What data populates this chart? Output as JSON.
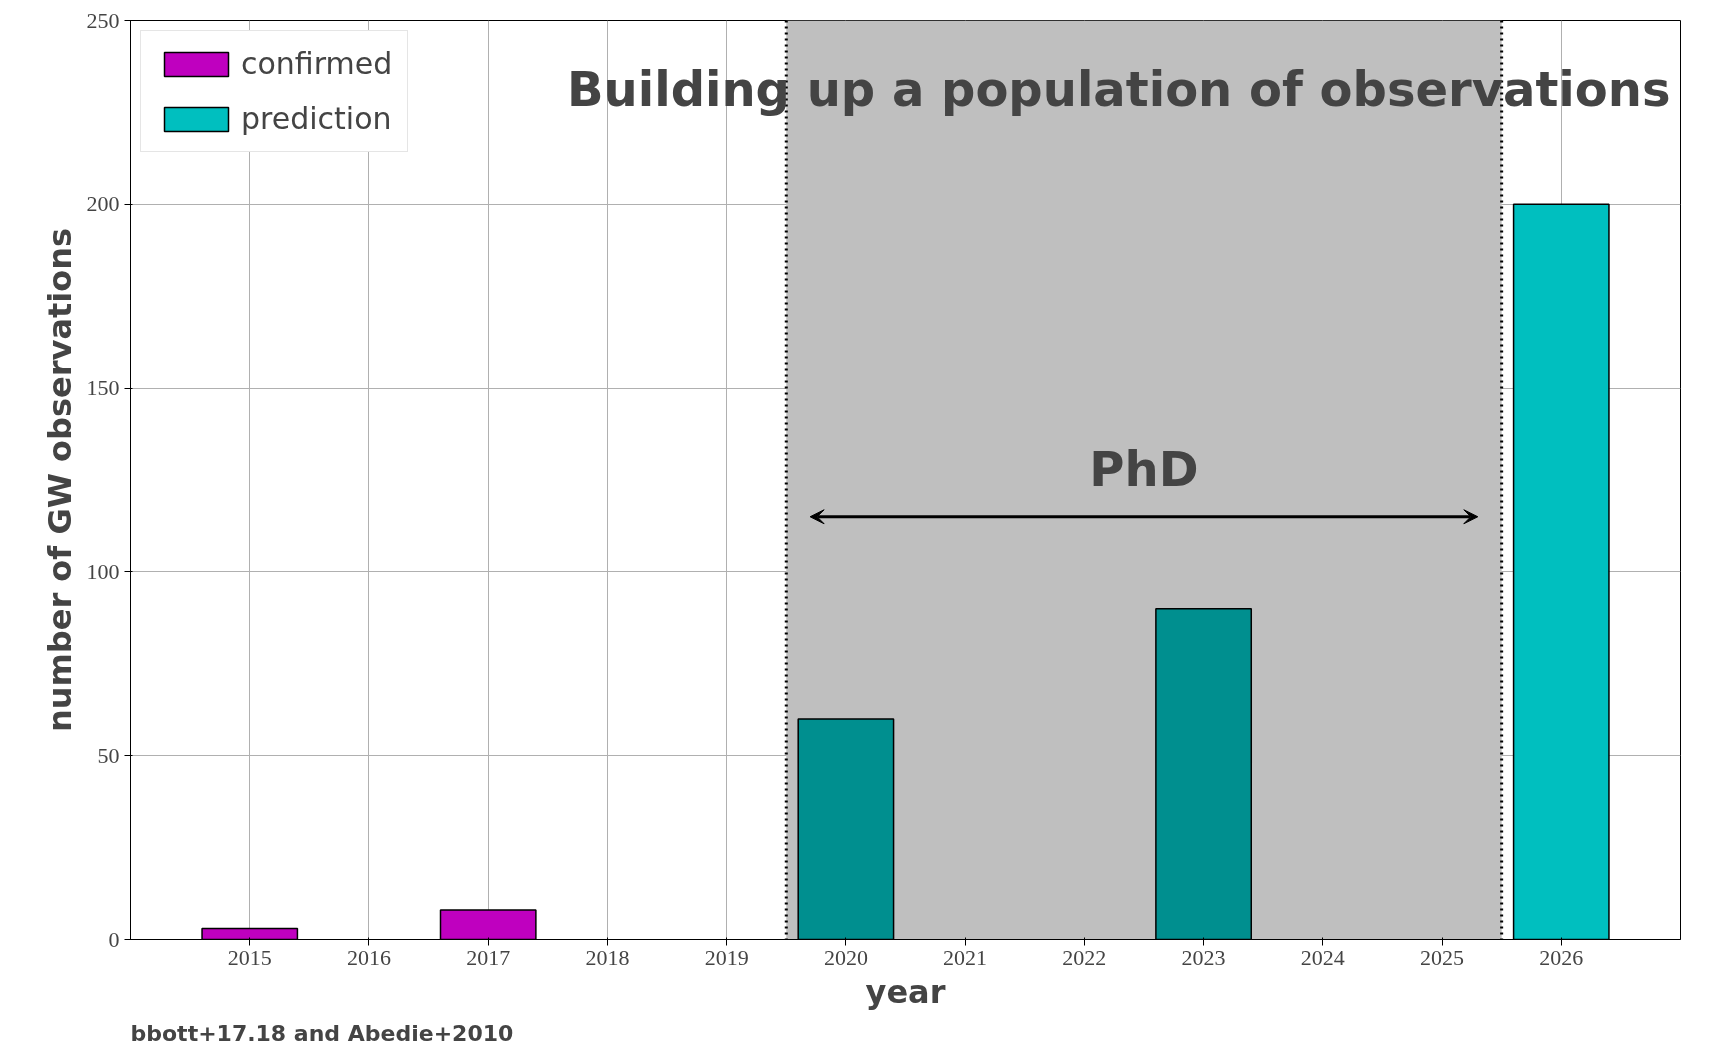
{
  "chart_data": {
    "type": "bar",
    "title": "Building up a population of observations",
    "xlabel": "year",
    "ylabel": "number of GW observations",
    "series": [
      {
        "name": "confirmed",
        "color": "#bf00bf",
        "x": [
          2015,
          2017
        ],
        "values": [
          3,
          8
        ]
      },
      {
        "name": "prediction",
        "color": "#00bfbf",
        "colors": [
          "#008f8f",
          "#008f8f",
          "#00bfbf"
        ],
        "x": [
          2020,
          2023,
          2026
        ],
        "values": [
          60,
          90,
          200
        ]
      }
    ],
    "xlim": [
      2014,
      2027
    ],
    "xticks": [
      2015,
      2016,
      2017,
      2018,
      2019,
      2020,
      2021,
      2022,
      2023,
      2024,
      2025,
      2026
    ],
    "ylim": [
      0,
      250
    ],
    "yticks": [
      0,
      50,
      100,
      150,
      200,
      250
    ],
    "bands": [
      {
        "axis": "x",
        "from": 2019.5,
        "to": 2025.5,
        "color": "#bfbfbf"
      }
    ],
    "ref_lines": [
      {
        "axis": "x",
        "value": 2019.5,
        "line_style": "dotted",
        "color": "#000000"
      },
      {
        "axis": "x",
        "value": 2025.5,
        "line_style": "dotted",
        "color": "#000000"
      }
    ],
    "annotations": [
      "PhD",
      "bbott+17.18 and Abedie+2010"
    ],
    "grid": true,
    "legend": "top left"
  }
}
